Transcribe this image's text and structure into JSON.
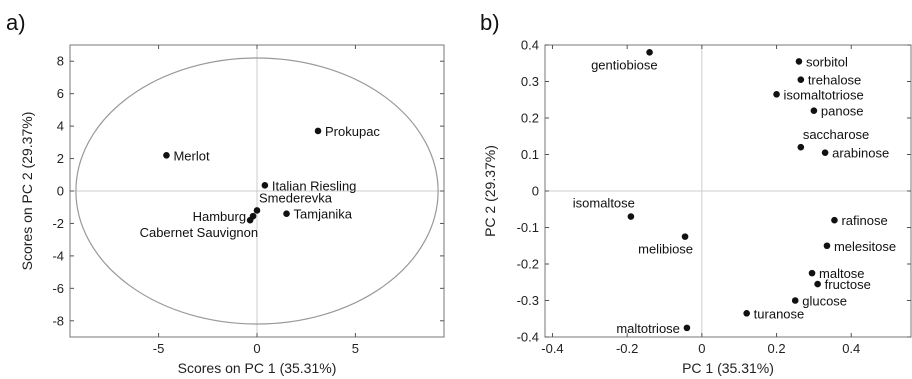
{
  "chart_data": [
    {
      "panel": "a)",
      "type": "scatter",
      "xlabel": "Scores on PC 1 (35.31%)",
      "ylabel": "Scores on PC 2 (29.37%)",
      "xlim": [
        -9.5,
        9.5
      ],
      "ylim": [
        -9,
        9
      ],
      "xticks": [
        -5,
        0,
        5
      ],
      "yticks": [
        8,
        6,
        4,
        2,
        0,
        -2,
        -4,
        -6,
        -8
      ],
      "ellipse": {
        "rx": 9.2,
        "ry": 8.2
      },
      "points": [
        {
          "label": "Prokupac",
          "x": 3.1,
          "y": 3.7,
          "label_pos": "right"
        },
        {
          "label": "Merlot",
          "x": -4.6,
          "y": 2.2,
          "label_pos": "right"
        },
        {
          "label": "Italian Riesling",
          "x": 0.4,
          "y": 0.35,
          "label_pos": "right"
        },
        {
          "label": "Smederevka",
          "x": 0.0,
          "y": -1.2,
          "label_pos": "above-right"
        },
        {
          "label": "Tamjanika",
          "x": 1.5,
          "y": -1.4,
          "label_pos": "right"
        },
        {
          "label": "Hamburg",
          "x": -0.2,
          "y": -1.55,
          "label_pos": "left"
        },
        {
          "label": "Cabernet Sauvignon",
          "x": -0.35,
          "y": -1.8,
          "label_pos": "below-left"
        }
      ]
    },
    {
      "panel": "b)",
      "type": "scatter",
      "xlabel": "PC 1 (35.31%)",
      "ylabel": "PC 2 (29.37%)",
      "xlim": [
        -0.42,
        0.56
      ],
      "ylim": [
        -0.4,
        0.4
      ],
      "xticks": [
        -0.4,
        -0.2,
        0,
        0.2,
        0.4
      ],
      "yticks": [
        0.4,
        0.3,
        0.2,
        0.1,
        0,
        -0.1,
        -0.2,
        -0.3,
        -0.4
      ],
      "points": [
        {
          "label": "gentiobiose",
          "x": -0.14,
          "y": 0.38,
          "label_pos": "below-left"
        },
        {
          "label": "sorbitol",
          "x": 0.26,
          "y": 0.355,
          "label_pos": "right"
        },
        {
          "label": "trehalose",
          "x": 0.265,
          "y": 0.305,
          "label_pos": "right"
        },
        {
          "label": "isomaltotriose",
          "x": 0.2,
          "y": 0.265,
          "label_pos": "right"
        },
        {
          "label": "panose",
          "x": 0.3,
          "y": 0.22,
          "label_pos": "right"
        },
        {
          "label": "saccharose",
          "x": 0.265,
          "y": 0.12,
          "label_pos": "above-right"
        },
        {
          "label": "arabinose",
          "x": 0.33,
          "y": 0.105,
          "label_pos": "right"
        },
        {
          "label": "isomaltose",
          "x": -0.19,
          "y": -0.07,
          "label_pos": "above-left"
        },
        {
          "label": "melibiose",
          "x": -0.045,
          "y": -0.125,
          "label_pos": "below-left"
        },
        {
          "label": "rafinose",
          "x": 0.355,
          "y": -0.08,
          "label_pos": "right"
        },
        {
          "label": "melesitose",
          "x": 0.335,
          "y": -0.15,
          "label_pos": "right"
        },
        {
          "label": "maltose",
          "x": 0.295,
          "y": -0.225,
          "label_pos": "right"
        },
        {
          "label": "fructose",
          "x": 0.31,
          "y": -0.255,
          "label_pos": "right"
        },
        {
          "label": "glucose",
          "x": 0.25,
          "y": -0.3,
          "label_pos": "right"
        },
        {
          "label": "turanose",
          "x": 0.12,
          "y": -0.335,
          "label_pos": "right"
        },
        {
          "label": "maltotriose",
          "x": -0.04,
          "y": -0.375,
          "label_pos": "left"
        }
      ]
    }
  ]
}
